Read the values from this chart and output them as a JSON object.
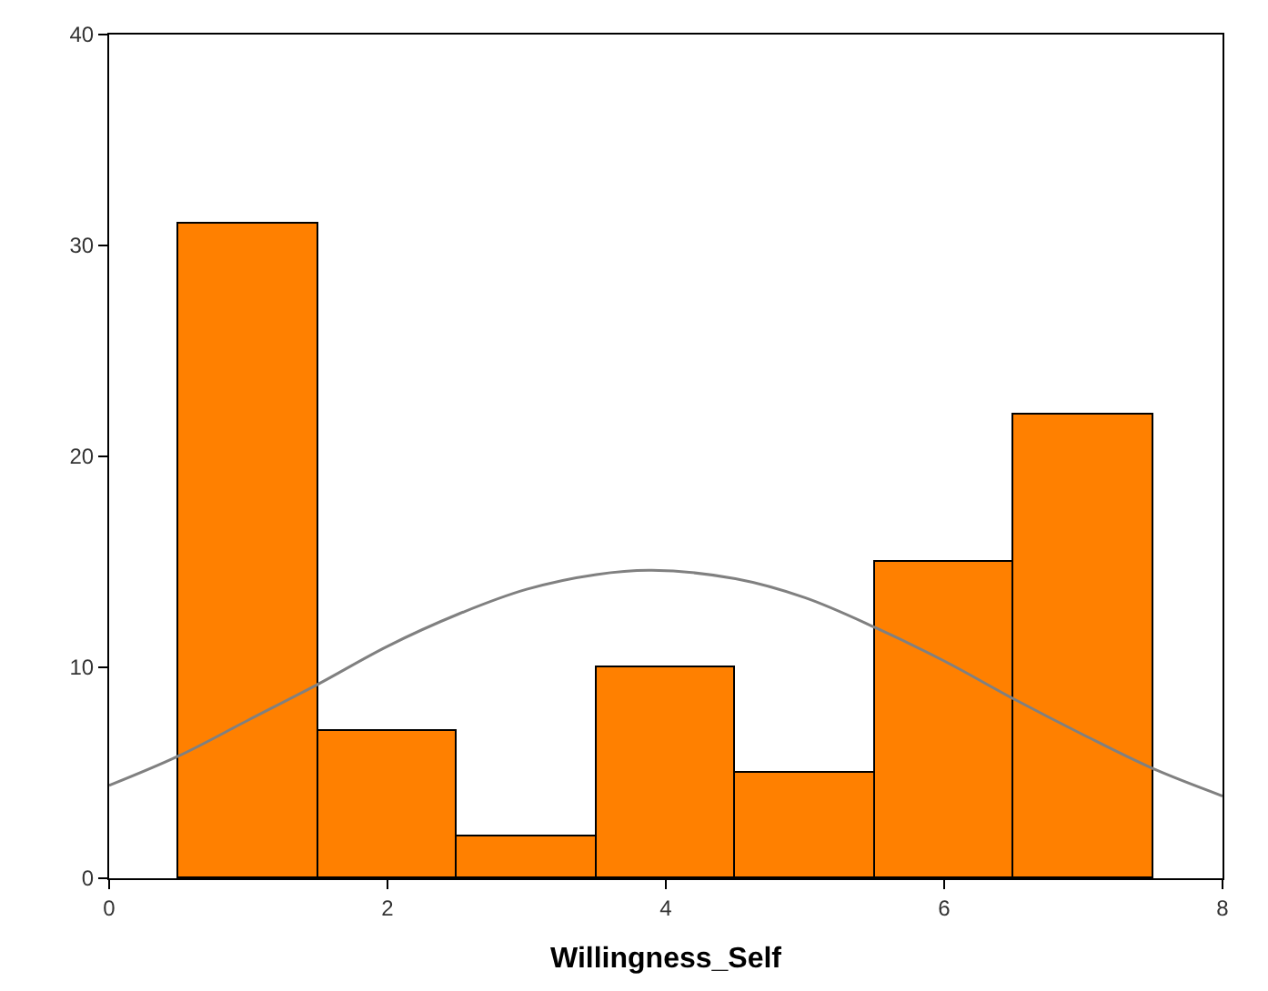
{
  "chart_data": {
    "type": "histogram",
    "xlabel": "Willingness_Self",
    "xlim": [
      0,
      8
    ],
    "xticks": [
      0,
      2,
      4,
      6,
      8
    ],
    "ylim": [
      0,
      40
    ],
    "yticks": [
      0,
      10,
      20,
      30,
      40
    ],
    "series": [
      {
        "type": "histogram",
        "color": "#ff8000",
        "bins": [
          0.5,
          1.5,
          2.5,
          3.5,
          4.5,
          5.5,
          6.5,
          7.5
        ],
        "values": [
          31,
          7,
          2,
          10,
          5,
          15,
          22
        ]
      },
      {
        "type": "line",
        "color": "#808080",
        "x": [
          0,
          0.5,
          1,
          1.5,
          2,
          2.5,
          3,
          3.5,
          3.9,
          4.5,
          5,
          5.5,
          6,
          6.5,
          7,
          7.5,
          8
        ],
        "values": [
          4.4,
          5.8,
          7.5,
          9.2,
          11.0,
          12.5,
          13.7,
          14.4,
          14.6,
          14.2,
          13.3,
          11.9,
          10.3,
          8.5,
          6.8,
          5.2,
          3.9
        ]
      }
    ]
  }
}
